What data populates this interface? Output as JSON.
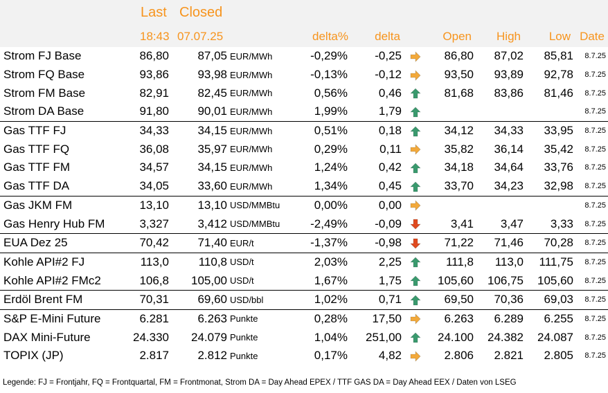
{
  "header": {
    "last_label": "Last",
    "closed_label": "Closed",
    "last_time": "18:43",
    "closed_date": "07.07.25",
    "delta_pct_label": "delta%",
    "delta_label": "delta",
    "open_label": "Open",
    "high_label": "High",
    "low_label": "Low",
    "date_label": "Date"
  },
  "rows": [
    {
      "name": "Strom FJ Base",
      "last": "86,80",
      "closed": "87,05",
      "unit": "EUR/MWh",
      "delta_pct": "-0,29%",
      "delta": "-0,25",
      "trend": "flat",
      "open": "86,80",
      "high": "87,02",
      "low": "85,81",
      "date": "8.7.25"
    },
    {
      "name": "Strom FQ Base",
      "last": "93,86",
      "closed": "93,98",
      "unit": "EUR/MWh",
      "delta_pct": "-0,13%",
      "delta": "-0,12",
      "trend": "flat",
      "open": "93,50",
      "high": "93,89",
      "low": "92,78",
      "date": "8.7.25"
    },
    {
      "name": "Strom FM Base",
      "last": "82,91",
      "closed": "82,45",
      "unit": "EUR/MWh",
      "delta_pct": "0,56%",
      "delta": "0,46",
      "trend": "up",
      "open": "81,68",
      "high": "83,86",
      "low": "81,46",
      "date": "8.7.25"
    },
    {
      "name": "Strom DA Base",
      "last": "91,80",
      "closed": "90,01",
      "unit": "EUR/MWh",
      "delta_pct": "1,99%",
      "delta": "1,79",
      "trend": "up",
      "open": "",
      "high": "",
      "low": "",
      "date": "8.7.25"
    },
    {
      "name": "Gas TTF FJ",
      "last": "34,33",
      "closed": "34,15",
      "unit": "EUR/MWh",
      "delta_pct": "0,51%",
      "delta": "0,18",
      "trend": "up",
      "open": "34,12",
      "high": "34,33",
      "low": "33,95",
      "date": "8.7.25"
    },
    {
      "name": "Gas TTF FQ",
      "last": "36,08",
      "closed": "35,97",
      "unit": "EUR/MWh",
      "delta_pct": "0,29%",
      "delta": "0,11",
      "trend": "flat",
      "open": "35,82",
      "high": "36,14",
      "low": "35,42",
      "date": "8.7.25"
    },
    {
      "name": "Gas TTF FM",
      "last": "34,57",
      "closed": "34,15",
      "unit": "EUR/MWh",
      "delta_pct": "1,24%",
      "delta": "0,42",
      "trend": "up",
      "open": "34,18",
      "high": "34,64",
      "low": "33,76",
      "date": "8.7.25"
    },
    {
      "name": "Gas TTF DA",
      "last": "34,05",
      "closed": "33,60",
      "unit": "EUR/MWh",
      "delta_pct": "1,34%",
      "delta": "0,45",
      "trend": "up",
      "open": "33,70",
      "high": "34,23",
      "low": "32,98",
      "date": "8.7.25"
    },
    {
      "name": "Gas JKM FM",
      "last": "13,10",
      "closed": "13,10",
      "unit": "USD/MMBtu",
      "delta_pct": "0,00%",
      "delta": "0,00",
      "trend": "flat",
      "open": "",
      "high": "",
      "low": "",
      "date": "8.7.25"
    },
    {
      "name": "Gas Henry Hub FM",
      "last": "3,327",
      "closed": "3,412",
      "unit": "USD/MMBtu",
      "delta_pct": "-2,49%",
      "delta": "-0,09",
      "trend": "down",
      "open": "3,41",
      "high": "3,47",
      "low": "3,33",
      "date": "8.7.25"
    },
    {
      "name": "EUA Dez 25",
      "last": "70,42",
      "closed": "71,40",
      "unit": "EUR/t",
      "delta_pct": "-1,37%",
      "delta": "-0,98",
      "trend": "down",
      "open": "71,22",
      "high": "71,46",
      "low": "70,28",
      "date": "8.7.25"
    },
    {
      "name": "Kohle API#2 FJ",
      "last": "113,0",
      "closed": "110,8",
      "unit": "USD/t",
      "delta_pct": "2,03%",
      "delta": "2,25",
      "trend": "up",
      "open": "111,8",
      "high": "113,0",
      "low": "111,75",
      "date": "8.7.25"
    },
    {
      "name": "Kohle API#2 FMc2",
      "last": "106,8",
      "closed": "105,00",
      "unit": "USD/t",
      "delta_pct": "1,67%",
      "delta": "1,75",
      "trend": "up",
      "open": "105,60",
      "high": "106,75",
      "low": "105,60",
      "date": "8.7.25"
    },
    {
      "name": "Erdöl Brent FM",
      "last": "70,31",
      "closed": "69,60",
      "unit": "USD/bbl",
      "delta_pct": "1,02%",
      "delta": "0,71",
      "trend": "up",
      "open": "69,50",
      "high": "70,36",
      "low": "69,03",
      "date": "8.7.25"
    },
    {
      "name": "S&P E-Mini Future",
      "last": "6.281",
      "closed": "6.263",
      "unit": "Punkte",
      "delta_pct": "0,28%",
      "delta": "17,50",
      "trend": "flat",
      "open": "6.263",
      "high": "6.289",
      "low": "6.255",
      "date": "8.7.25"
    },
    {
      "name": "DAX Mini-Future",
      "last": "24.330",
      "closed": "24.079",
      "unit": "Punkte",
      "delta_pct": "1,04%",
      "delta": "251,00",
      "trend": "up",
      "open": "24.100",
      "high": "24.382",
      "low": "24.087",
      "date": "8.7.25"
    },
    {
      "name": "TOPIX (JP)",
      "last": "2.817",
      "closed": "2.812",
      "unit": "Punkte",
      "delta_pct": "0,17%",
      "delta": "4,82",
      "trend": "flat",
      "open": "2.806",
      "high": "2.821",
      "low": "2.805",
      "date": "8.7.25"
    }
  ],
  "legend": "Legende: FJ = Frontjahr, FQ = Frontquartal, FM = Frontmonat, Strom DA = Day Ahead EPEX / TTF GAS DA = Day Ahead EEX / Daten von LSEG",
  "icons": {
    "up": "arrow-up-icon",
    "down": "arrow-down-icon",
    "flat": "arrow-right-icon"
  },
  "colors": {
    "header_text": "#f7941d",
    "up": "#3a9a6e",
    "down": "#e04a1f",
    "flat": "#f2a93b",
    "header_bg": "#f2f2f2"
  }
}
